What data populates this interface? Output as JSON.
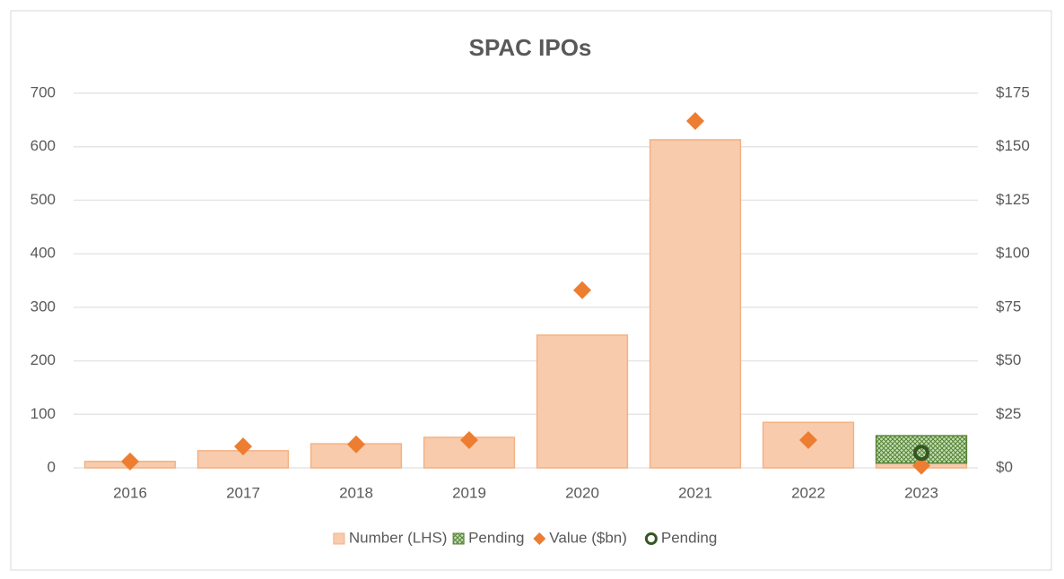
{
  "chart_data": {
    "type": "bar",
    "title": "SPAC IPOs",
    "categories": [
      "2016",
      "2017",
      "2018",
      "2019",
      "2020",
      "2021",
      "2022",
      "2023"
    ],
    "series": [
      {
        "name": "Number (LHS)",
        "type": "bar",
        "color": "#f8cbad",
        "edge": "#f4b183",
        "values": [
          12,
          32,
          45,
          57,
          248,
          613,
          85,
          9
        ]
      },
      {
        "name": "Pending",
        "type": "bar",
        "color": "#548235",
        "pattern": "hatch",
        "values": [
          null,
          null,
          null,
          null,
          null,
          null,
          null,
          51
        ]
      },
      {
        "name": "Value ($bn)",
        "type": "scatter",
        "marker": "diamond",
        "axis": "y2",
        "color": "#ed7d31",
        "values": [
          3,
          10,
          11,
          13,
          83,
          162,
          13,
          1
        ]
      },
      {
        "name": "Pending",
        "type": "scatter",
        "marker": "circle",
        "axis": "y2",
        "color": "#375623",
        "values": [
          null,
          null,
          null,
          null,
          null,
          null,
          null,
          7
        ]
      }
    ],
    "ylim": [
      0,
      700
    ],
    "yticks": [
      0,
      100,
      200,
      300,
      400,
      500,
      600,
      700
    ],
    "y2lim": [
      0,
      175
    ],
    "y2ticks": [
      {
        "value": 0,
        "label": "$0"
      },
      {
        "value": 25,
        "label": "$25"
      },
      {
        "value": 50,
        "label": "$50"
      },
      {
        "value": 75,
        "label": "$75"
      },
      {
        "value": 100,
        "label": "$100"
      },
      {
        "value": 125,
        "label": "$125"
      },
      {
        "value": 150,
        "label": "$150"
      },
      {
        "value": 175,
        "label": "$175"
      }
    ],
    "grid": true,
    "legend": "bottom"
  }
}
